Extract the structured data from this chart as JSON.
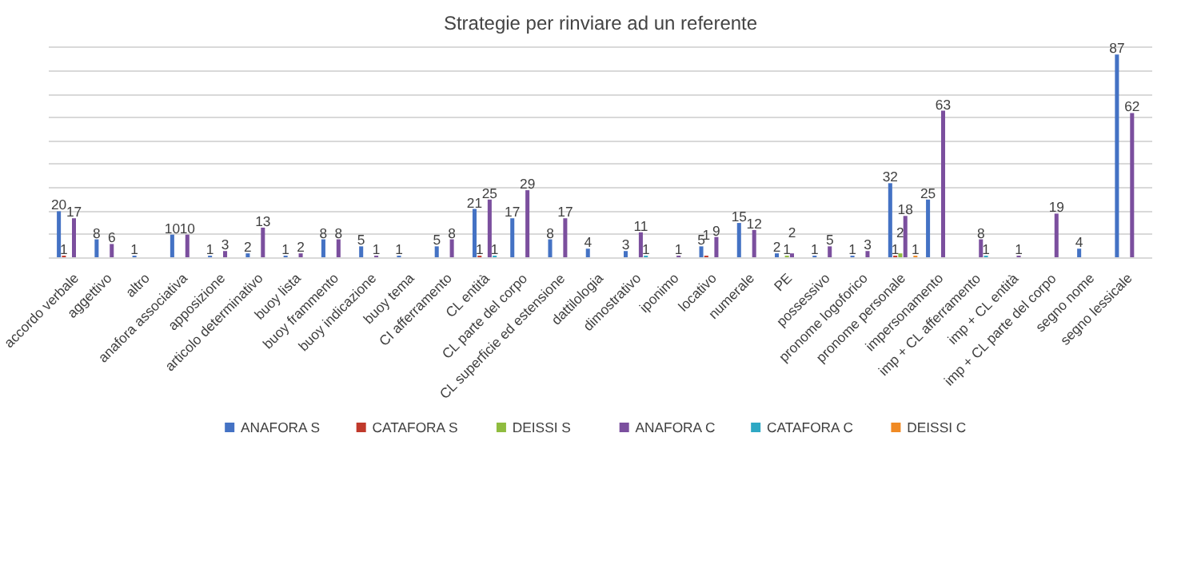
{
  "chart_data": {
    "type": "bar",
    "title": "Strategie per rinviare ad un referente",
    "categories": [
      "accordo verbale",
      "aggettivo",
      "altro",
      "anafora associativa",
      "apposizione",
      "articolo determinativo",
      "buoy lista",
      "buoy frammento",
      "buoy indicazione",
      "buoy tema",
      "CI afferramento",
      "CL entità",
      "CL parte del corpo",
      "CL superficie ed estensione",
      "dattilologia",
      "dimostrativo",
      "iponimo",
      "locativo",
      "numerale",
      "PE",
      "possessivo",
      "pronome logoforico",
      "pronome personale",
      "impersonamento",
      "imp + CL afferramento",
      "imp + CL entità",
      "imp + CL parte del corpo",
      "segno nome",
      "segno lessicale"
    ],
    "series": [
      {
        "name": "ANAFORA S",
        "color": "#4472c4",
        "values": [
          20,
          8,
          1,
          10,
          1,
          2,
          1,
          8,
          5,
          1,
          5,
          21,
          17,
          8,
          4,
          3,
          null,
          5,
          15,
          2,
          1,
          1,
          32,
          25,
          null,
          null,
          null,
          4,
          87
        ]
      },
      {
        "name": "CATAFORA S",
        "color": "#c0392b",
        "values": [
          1,
          null,
          null,
          null,
          null,
          null,
          null,
          null,
          null,
          null,
          null,
          1,
          null,
          null,
          null,
          null,
          null,
          1,
          null,
          null,
          null,
          null,
          1,
          null,
          null,
          null,
          null,
          null,
          null
        ]
      },
      {
        "name": "DEISSI S",
        "color": "#8fbc3f",
        "values": [
          null,
          null,
          null,
          null,
          null,
          null,
          null,
          null,
          null,
          null,
          null,
          null,
          null,
          null,
          null,
          null,
          null,
          null,
          null,
          1,
          null,
          null,
          2,
          null,
          null,
          null,
          null,
          null,
          null
        ]
      },
      {
        "name": "ANAFORA C",
        "color": "#7b4f9e",
        "values": [
          17,
          6,
          null,
          10,
          3,
          13,
          2,
          8,
          1,
          null,
          8,
          25,
          29,
          17,
          null,
          11,
          1,
          9,
          12,
          2,
          5,
          3,
          18,
          63,
          8,
          1,
          19,
          null,
          62
        ]
      },
      {
        "name": "CATAFORA C",
        "color": "#2ea8c4",
        "values": [
          null,
          null,
          null,
          null,
          null,
          null,
          null,
          null,
          null,
          null,
          null,
          1,
          null,
          null,
          null,
          1,
          null,
          null,
          null,
          null,
          null,
          null,
          null,
          null,
          1,
          null,
          null,
          null,
          null
        ]
      },
      {
        "name": "DEISSI C",
        "color": "#f08a24",
        "values": [
          null,
          null,
          null,
          null,
          null,
          null,
          null,
          null,
          null,
          null,
          null,
          null,
          null,
          null,
          null,
          null,
          null,
          null,
          null,
          null,
          null,
          null,
          1,
          null,
          null,
          null,
          null,
          null,
          null
        ]
      }
    ],
    "grid": "y",
    "legend": "bottom",
    "data_labels": true,
    "tick_labels": "x"
  }
}
